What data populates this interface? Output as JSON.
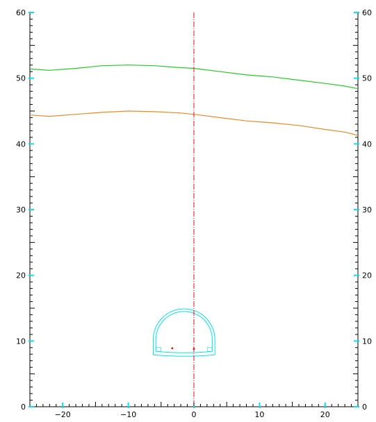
{
  "chart_data": {
    "type": "line",
    "title": "",
    "xlabel": "",
    "ylabel": "",
    "xlim": [
      -25,
      25
    ],
    "ylim": [
      0,
      60
    ],
    "x_ticks": [
      {
        "value": -20,
        "label": "−20"
      },
      {
        "value": -10,
        "label": "−10"
      },
      {
        "value": 0,
        "label": "0"
      },
      {
        "value": 10,
        "label": "10"
      },
      {
        "value": 20,
        "label": "20"
      }
    ],
    "y_ticks": [
      {
        "value": 0,
        "label": "0"
      },
      {
        "value": 10,
        "label": "10"
      },
      {
        "value": 20,
        "label": "20"
      },
      {
        "value": 30,
        "label": "30"
      },
      {
        "value": 40,
        "label": "40"
      },
      {
        "value": 50,
        "label": "50"
      },
      {
        "value": 60,
        "label": "60"
      }
    ],
    "grid": false,
    "series": [
      {
        "color": "#22cc22",
        "x": [
          -25,
          -22,
          -18,
          -14,
          -10,
          -6,
          -2,
          0,
          4,
          8,
          12,
          16,
          20,
          23,
          25
        ],
        "y": [
          51.4,
          51.2,
          51.5,
          51.9,
          52.0,
          51.9,
          51.6,
          51.5,
          51.0,
          50.5,
          50.2,
          49.7,
          49.2,
          48.8,
          48.4
        ]
      },
      {
        "color": "#ee8822",
        "x": [
          -25,
          -22,
          -18,
          -14,
          -10,
          -6,
          -2,
          0,
          4,
          8,
          12,
          16,
          20,
          23,
          25
        ],
        "y": [
          44.4,
          44.2,
          44.5,
          44.8,
          45.0,
          44.9,
          44.7,
          44.5,
          44.0,
          43.5,
          43.2,
          42.8,
          42.2,
          41.8,
          41.3
        ]
      }
    ],
    "centerline": {
      "x": 0,
      "y_from": 0,
      "y_to": 60,
      "color": "#ff0000"
    },
    "tunnel": {
      "color": "#00e5ee",
      "center_x": -1.5,
      "springline_y": 10.2,
      "invert_y": 8.0,
      "inner_radius": 4.3,
      "outer_radius": 4.7,
      "points": [
        {
          "x": -3.3,
          "y": 8.9,
          "color": "#ff0000"
        },
        {
          "x": 0,
          "y": 8.8,
          "color": "#ff0000"
        }
      ]
    },
    "colors": {
      "axis": "#000000",
      "major_tick": "#00e5ee",
      "background": "#ffffff"
    }
  }
}
